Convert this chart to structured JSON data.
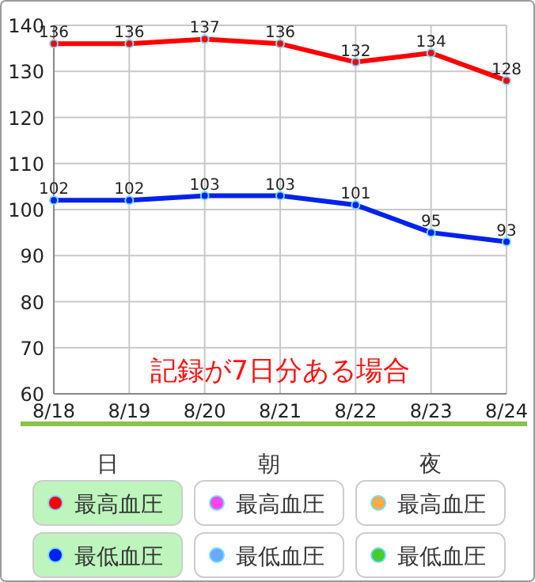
{
  "chart_data": {
    "type": "line",
    "categories": [
      "8/18",
      "8/19",
      "8/20",
      "8/21",
      "8/22",
      "8/23",
      "8/24"
    ],
    "series": [
      {
        "name": "最高血圧",
        "color": "#ff0000",
        "values": [
          136,
          136,
          137,
          136,
          132,
          134,
          128
        ]
      },
      {
        "name": "最低血圧",
        "color": "#0022ee",
        "values": [
          102,
          102,
          103,
          103,
          101,
          95,
          93
        ]
      },
      {
        "name": "最高血圧",
        "color": "#ff44ee",
        "values": [
          null,
          null,
          null,
          null,
          null,
          null,
          null
        ]
      },
      {
        "name": "最低血圧",
        "color": "#66aaff",
        "values": [
          null,
          null,
          null,
          null,
          null,
          null,
          null
        ]
      },
      {
        "name": "最高血圧",
        "color": "#ffaa44",
        "values": [
          null,
          null,
          null,
          null,
          null,
          null,
          null
        ]
      },
      {
        "name": "最低血圧",
        "color": "#44cc33",
        "values": [
          null,
          null,
          null,
          null,
          null,
          null,
          null
        ]
      }
    ],
    "annotations": [
      "記録が7日分ある場合",
      "日",
      "朝",
      "夜"
    ],
    "ylim": [
      60,
      140
    ],
    "yticks": [
      60,
      70,
      80,
      90,
      100,
      110,
      120,
      130,
      140
    ],
    "grid": true,
    "legend": "bottom",
    "marker": "circle",
    "line_style": "solid",
    "data_labels": true
  }
}
